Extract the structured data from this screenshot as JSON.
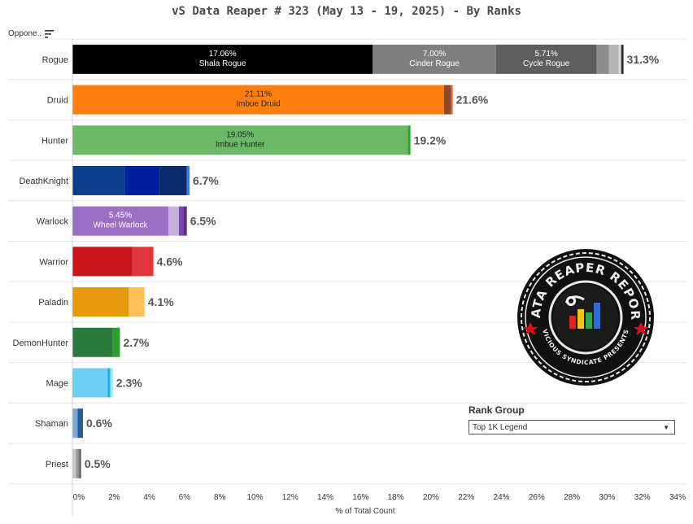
{
  "title": "vS Data Reaper #  323 (May 13 - 19, 2025) - By Ranks",
  "header": {
    "opponent_label": "Oppone..",
    "sort_icon": "sort-icon"
  },
  "rank_group": {
    "title": "Rank Group",
    "selected": "Top 1K Legend",
    "icon": "dropdown-arrow-icon"
  },
  "logo": {
    "text_top": "DATA REAPER REPORT",
    "text_bottom": "VICIOUS SYNDICATE PRESENTS",
    "icon": "data-reaper-logo"
  },
  "chart_data": {
    "type": "bar",
    "orientation": "horizontal",
    "stacked": true,
    "title": "vS Data Reaper #  323 (May 13 - 19, 2025) - By Ranks",
    "xlabel": "% of Total Count",
    "xlim": [
      0,
      34
    ],
    "xticks": [
      "0%",
      "2%",
      "4%",
      "6%",
      "8%",
      "10%",
      "12%",
      "14%",
      "16%",
      "18%",
      "20%",
      "22%",
      "24%",
      "26%",
      "28%",
      "30%",
      "32%",
      "34%"
    ],
    "grid": false,
    "categories": [
      "Rogue",
      "Druid",
      "Hunter",
      "DeathKnight",
      "Warlock",
      "Warrior",
      "Paladin",
      "DemonHunter",
      "Mage",
      "Shaman",
      "Priest"
    ],
    "rows": [
      {
        "category": "Rogue",
        "total_label": "31.3%",
        "segments": [
          {
            "value": 17.06,
            "color": "#000000",
            "pct": "17.06%",
            "name": "Shala Rogue"
          },
          {
            "value": 7.0,
            "color": "#7f7f7f",
            "pct": "7.00%",
            "name": "Cinder Rogue"
          },
          {
            "value": 5.71,
            "color": "#5e5e5e",
            "pct": "5.71%",
            "name": "Cycle Rogue"
          },
          {
            "value": 0.7,
            "color": "#8d8d8d"
          },
          {
            "value": 0.55,
            "color": "#b5b5b5"
          },
          {
            "value": 0.15,
            "color": "#d8d8d8"
          },
          {
            "value": 0.13,
            "color": "#2a2a2a"
          }
        ]
      },
      {
        "category": "Druid",
        "total_label": "21.6%",
        "segments": [
          {
            "value": 21.11,
            "color": "#ff7f0e",
            "pct": "21.11%",
            "name": "Imbue Druid",
            "dark": true
          },
          {
            "value": 0.39,
            "color": "#8b4a2b"
          },
          {
            "value": 0.1,
            "color": "#e0643a"
          }
        ]
      },
      {
        "category": "Hunter",
        "total_label": "19.2%",
        "segments": [
          {
            "value": 19.05,
            "color": "#6bb866",
            "pct": "19.05%",
            "name": "Imbue Hunter",
            "dark": true
          },
          {
            "value": 0.15,
            "color": "#2ca02c"
          }
        ]
      },
      {
        "category": "DeathKnight",
        "total_label": "6.7%",
        "segments": [
          {
            "value": 3.0,
            "color": "#0d3f8c"
          },
          {
            "value": 1.95,
            "color": "#001f9e"
          },
          {
            "value": 1.55,
            "color": "#0a2a6b"
          },
          {
            "value": 0.15,
            "color": "#3a7bd5"
          }
        ]
      },
      {
        "category": "Warlock",
        "total_label": "6.5%",
        "segments": [
          {
            "value": 5.45,
            "color": "#9c6fc5",
            "pct": "5.45%",
            "name": "Wheel Warlock"
          },
          {
            "value": 0.6,
            "color": "#c9afe0"
          },
          {
            "value": 0.25,
            "color": "#7a49b0"
          },
          {
            "value": 0.2,
            "color": "#5e2d91"
          }
        ]
      },
      {
        "category": "Warrior",
        "total_label": "4.6%",
        "segments": [
          {
            "value": 3.4,
            "color": "#c9151b"
          },
          {
            "value": 1.2,
            "color": "#e0373b"
          }
        ]
      },
      {
        "category": "Paladin",
        "total_label": "4.1%",
        "segments": [
          {
            "value": 3.2,
            "color": "#e59a0c"
          },
          {
            "value": 0.9,
            "color": "#ffc05c"
          }
        ]
      },
      {
        "category": "DemonHunter",
        "total_label": "2.7%",
        "segments": [
          {
            "value": 2.3,
            "color": "#2a7a3e"
          },
          {
            "value": 0.4,
            "color": "#2ca02c"
          }
        ]
      },
      {
        "category": "Mage",
        "total_label": "2.3%",
        "segments": [
          {
            "value": 2.0,
            "color": "#6ecff0"
          },
          {
            "value": 0.15,
            "color": "#13b5e0"
          },
          {
            "value": 0.15,
            "color": "#a9e4f5"
          }
        ]
      },
      {
        "category": "Shaman",
        "total_label": "0.6%",
        "segments": [
          {
            "value": 0.3,
            "color": "#7aa6d6"
          },
          {
            "value": 0.3,
            "color": "#2a5d9a"
          }
        ]
      },
      {
        "category": "Priest",
        "total_label": "0.5%",
        "segments": [
          {
            "value": 0.2,
            "color": "#c8c8c8"
          },
          {
            "value": 0.15,
            "color": "#9a9a9a"
          },
          {
            "value": 0.15,
            "color": "#6e6e6e"
          }
        ]
      }
    ]
  }
}
